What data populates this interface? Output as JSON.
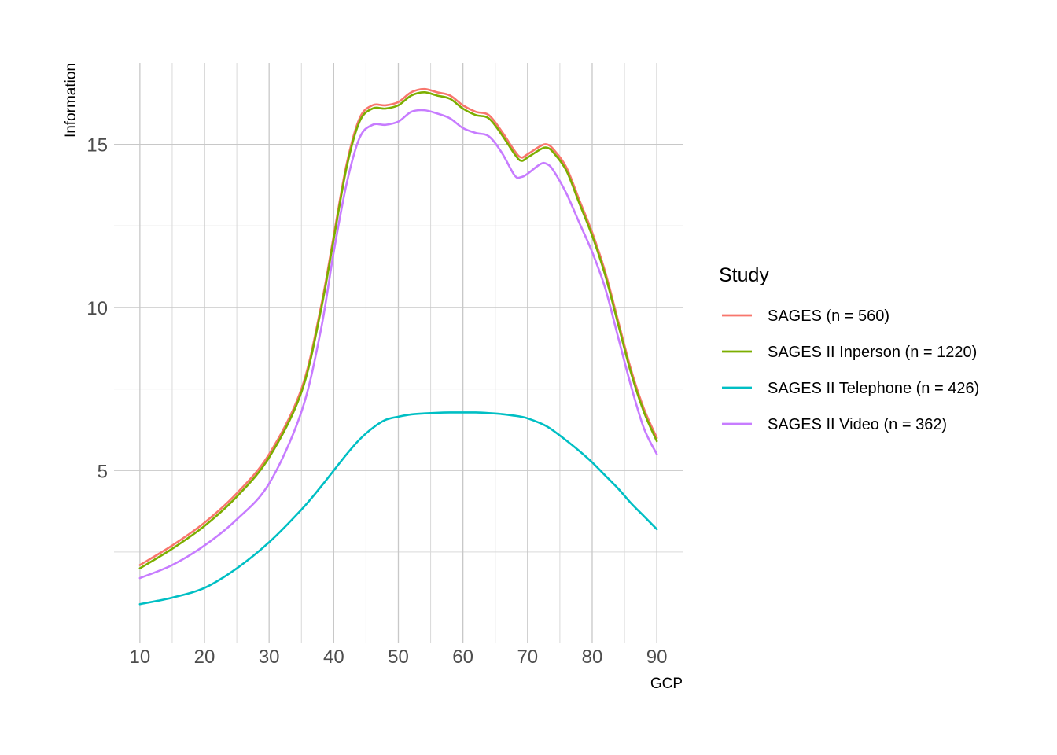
{
  "chart_data": {
    "type": "line",
    "xlabel": "GCP",
    "ylabel": "Information",
    "xlim": [
      6,
      94
    ],
    "ylim": [
      -0.3,
      17.5
    ],
    "x_ticks": [
      10,
      20,
      30,
      40,
      50,
      60,
      70,
      80,
      90
    ],
    "y_ticks": [
      5,
      10,
      15
    ],
    "x_minor_ticks": [
      15,
      25,
      35,
      45,
      55,
      65,
      75,
      85
    ],
    "y_minor_ticks": [
      2.5,
      7.5,
      12.5
    ],
    "grid": true,
    "legend": {
      "title": "Study",
      "position": "right"
    },
    "x": [
      10,
      15,
      20,
      25,
      30,
      35,
      38,
      40,
      42,
      44,
      46,
      48,
      50,
      52,
      54,
      56,
      58,
      60,
      62,
      64,
      66,
      68,
      69,
      70,
      72,
      73,
      74,
      76,
      78,
      80,
      82,
      84,
      86,
      88,
      90
    ],
    "series": [
      {
        "name": "SAGES (n = 560)",
        "color": "#F8766D",
        "values": [
          2.1,
          2.7,
          3.4,
          4.3,
          5.5,
          7.5,
          10.0,
          12.2,
          14.4,
          15.8,
          16.2,
          16.2,
          16.3,
          16.6,
          16.7,
          16.6,
          16.5,
          16.2,
          16.0,
          15.9,
          15.4,
          14.8,
          14.6,
          14.7,
          14.95,
          15.0,
          14.85,
          14.3,
          13.3,
          12.3,
          11.1,
          9.6,
          8.1,
          6.9,
          6.0
        ]
      },
      {
        "name": "SAGES II Inperson (n = 1220)",
        "color": "#7CAE00",
        "values": [
          2.0,
          2.6,
          3.3,
          4.2,
          5.4,
          7.4,
          9.9,
          12.1,
          14.3,
          15.7,
          16.1,
          16.1,
          16.2,
          16.5,
          16.6,
          16.5,
          16.4,
          16.1,
          15.9,
          15.8,
          15.3,
          14.7,
          14.5,
          14.6,
          14.85,
          14.9,
          14.75,
          14.2,
          13.2,
          12.2,
          11.0,
          9.5,
          8.0,
          6.8,
          5.9
        ]
      },
      {
        "name": "SAGES II Telephone (n = 426)",
        "color": "#00BFC4",
        "values": [
          0.9,
          1.1,
          1.4,
          2.0,
          2.8,
          3.8,
          4.5,
          5.0,
          5.5,
          5.95,
          6.3,
          6.55,
          6.65,
          6.72,
          6.75,
          6.77,
          6.78,
          6.78,
          6.78,
          6.76,
          6.73,
          6.68,
          6.65,
          6.6,
          6.45,
          6.35,
          6.22,
          5.92,
          5.6,
          5.25,
          4.85,
          4.45,
          4.0,
          3.6,
          3.2
        ]
      },
      {
        "name": "SAGES II Video (n = 362)",
        "color": "#C77CFF",
        "values": [
          1.7,
          2.1,
          2.7,
          3.5,
          4.6,
          6.8,
          9.3,
          11.7,
          13.8,
          15.2,
          15.6,
          15.6,
          15.7,
          16.0,
          16.05,
          15.95,
          15.8,
          15.5,
          15.35,
          15.25,
          14.75,
          14.05,
          14.0,
          14.1,
          14.4,
          14.4,
          14.2,
          13.5,
          12.6,
          11.7,
          10.6,
          9.1,
          7.6,
          6.3,
          5.5
        ]
      }
    ]
  }
}
